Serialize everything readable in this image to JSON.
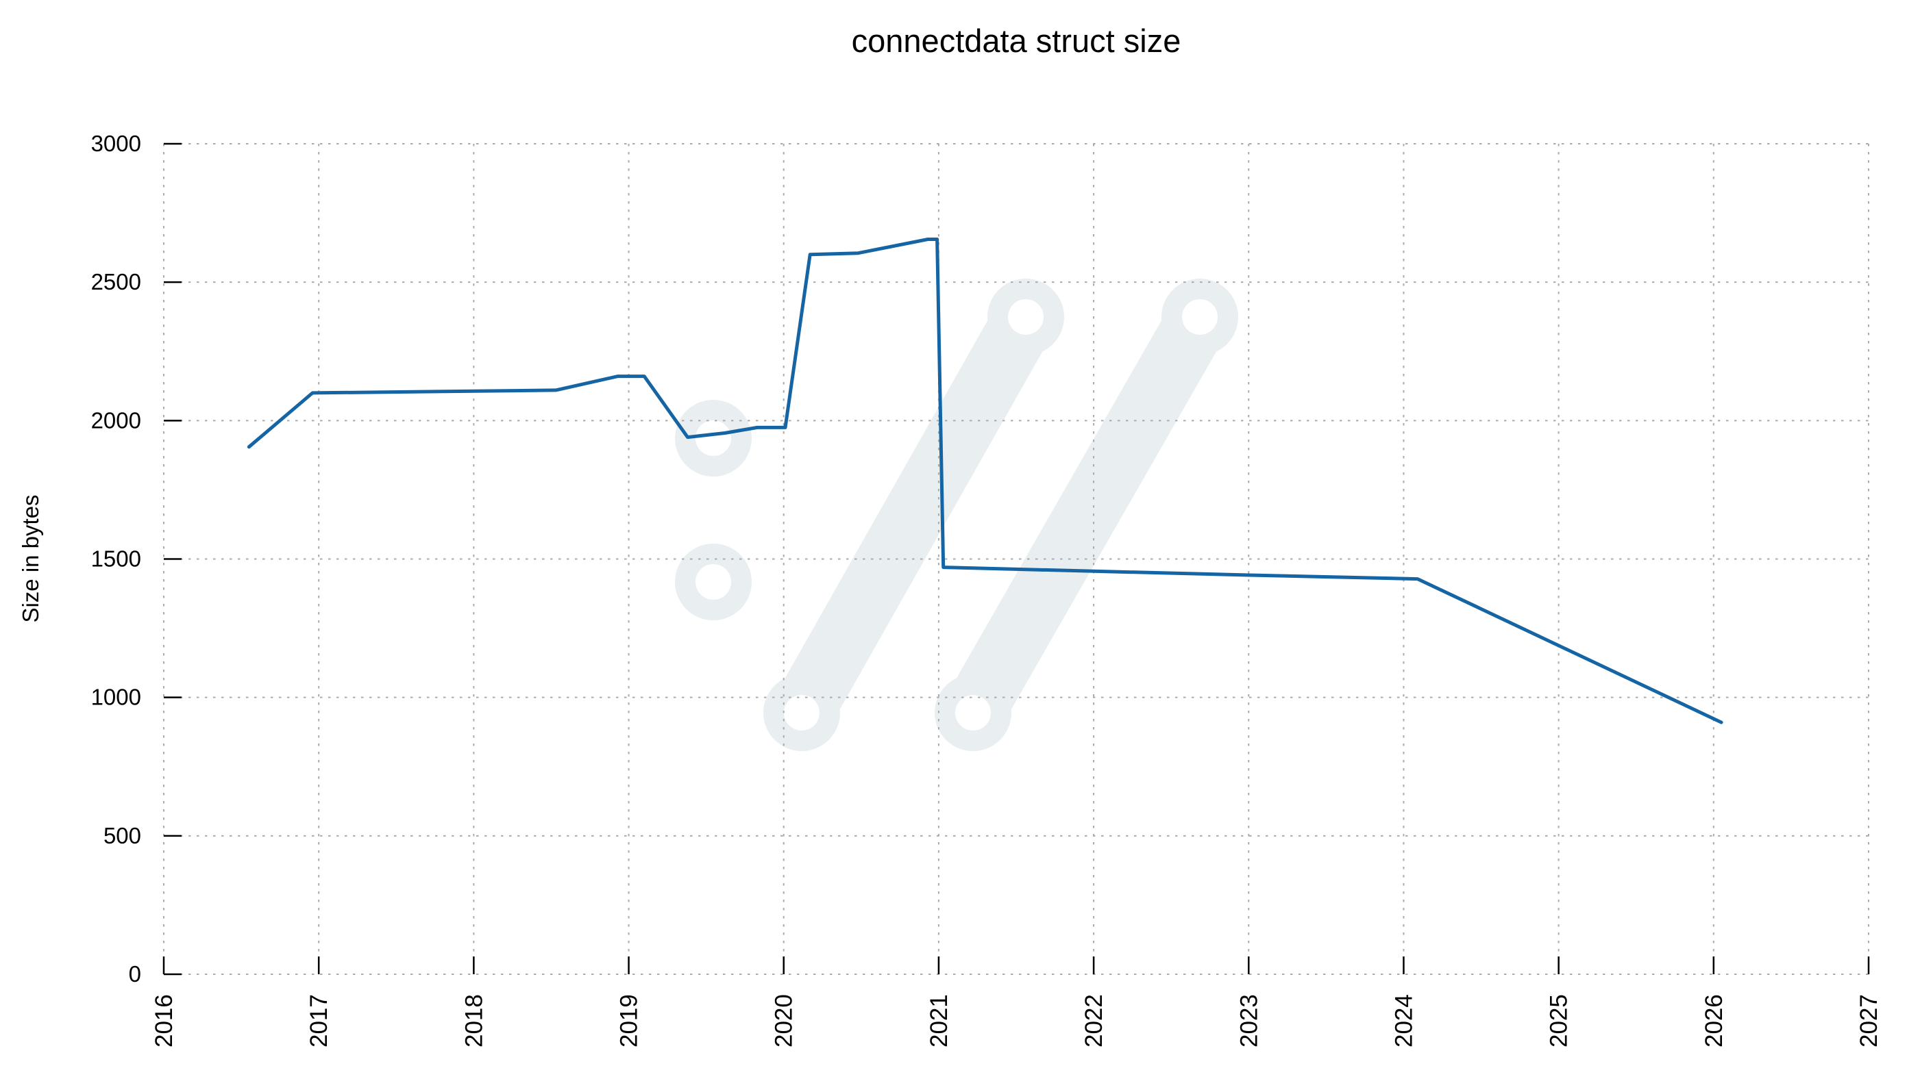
{
  "page": {
    "background": "#ffffff"
  },
  "chart_data": {
    "type": "line",
    "title": "connectdata struct size",
    "xlabel": "",
    "ylabel": "Size in bytes",
    "xlim": [
      2016,
      2027
    ],
    "ylim": [
      0,
      3000
    ],
    "x_ticks": [
      "2016",
      "2017",
      "2018",
      "2019",
      "2020",
      "2021",
      "2022",
      "2023",
      "2024",
      "2025",
      "2026",
      "2027"
    ],
    "x_tick_values": [
      2016,
      2017,
      2018,
      2019,
      2020,
      2021,
      2022,
      2023,
      2024,
      2025,
      2026,
      2027
    ],
    "y_ticks": [
      "0",
      "500",
      "1000",
      "1500",
      "2000",
      "2500",
      "3000"
    ],
    "y_tick_values": [
      0,
      500,
      1000,
      1500,
      2000,
      2500,
      3000
    ],
    "grid": "dotted-both-axes",
    "legend": "none",
    "series": [
      {
        "name": "connectdata struct size in bytes",
        "color": "#1565a5",
        "x": [
          2016.55,
          2016.96,
          2018.53,
          2018.93,
          2019.1,
          2019.38,
          2019.62,
          2019.83,
          2020.01,
          2020.17,
          2020.48,
          2020.93,
          2020.99,
          2021.03,
          2022.0,
          2023.0,
          2024.09,
          2026.05
        ],
        "y": [
          1905,
          2100,
          2110,
          2160,
          2160,
          1940,
          1955,
          1975,
          1975,
          2600,
          2605,
          2655,
          2655,
          1470,
          1456,
          1442,
          1428,
          910
        ]
      }
    ],
    "watermark": {
      "icon": "curl-logo",
      "color": "#e9eef0"
    },
    "colors": {
      "grid": "#aaaaaa",
      "tick_marks": "#000000",
      "text": "#000000",
      "line": "#1565a5"
    }
  }
}
